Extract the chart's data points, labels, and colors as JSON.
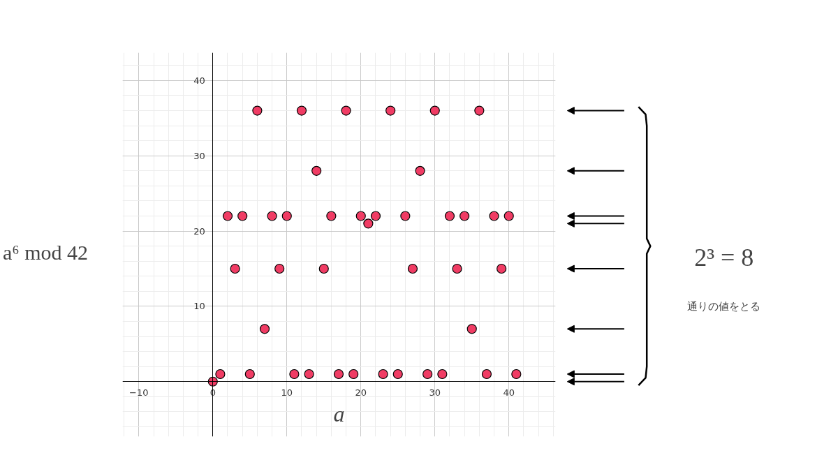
{
  "chart_data": {
    "type": "scatter",
    "xlabel": "a",
    "ylabel": "a⁶ mod 42",
    "x": [
      0,
      1,
      2,
      3,
      4,
      5,
      6,
      7,
      8,
      9,
      10,
      11,
      12,
      13,
      14,
      15,
      16,
      17,
      18,
      19,
      20,
      21,
      22,
      23,
      24,
      25,
      26,
      27,
      28,
      29,
      30,
      31,
      32,
      33,
      34,
      35,
      36,
      37,
      38,
      39,
      40,
      41
    ],
    "series": [
      {
        "color": "#f03c64",
        "values": [
          0,
          1,
          22,
          15,
          22,
          1,
          36,
          7,
          22,
          15,
          22,
          1,
          36,
          1,
          28,
          15,
          22,
          1,
          36,
          1,
          22,
          21,
          22,
          1,
          36,
          1,
          22,
          15,
          28,
          1,
          36,
          1,
          22,
          15,
          22,
          7,
          36,
          1,
          22,
          15,
          22,
          1
        ]
      }
    ],
    "xlim": [
      -12.2,
      46.3
    ],
    "ylim": [
      -7.3,
      43.7
    ],
    "xticks": [
      -10,
      0,
      10,
      20,
      30,
      40
    ],
    "yticks": [
      10,
      20,
      30,
      40
    ],
    "grid": true,
    "marker": "circle",
    "annotations": [
      "2³ = 8",
      "通りの値をとる"
    ]
  }
}
